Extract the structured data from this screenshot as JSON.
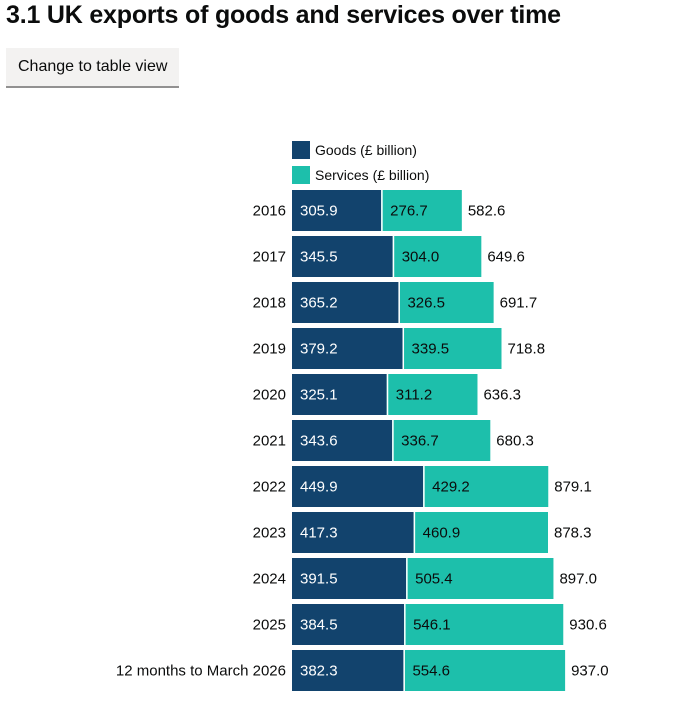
{
  "header": {
    "title": "3.1 UK exports of goods and services over time"
  },
  "controls": {
    "toggle_label": "Change to table view"
  },
  "colors": {
    "goods": "#12436d",
    "services": "#1dbfab",
    "divider": "#ffffff"
  },
  "chart_data": {
    "type": "bar",
    "orientation": "horizontal",
    "stacked": true,
    "title": "3.1 UK exports of goods and services over time",
    "categories": [
      "2016",
      "2017",
      "2018",
      "2019",
      "2020",
      "2021",
      "2022",
      "2023",
      "2024",
      "2025",
      "12 months to March 2026"
    ],
    "series": [
      {
        "name": "Goods (£ billion)",
        "values": [
          305.9,
          345.5,
          365.2,
          379.2,
          325.1,
          343.6,
          449.9,
          417.3,
          391.5,
          384.5,
          382.3
        ],
        "labels": [
          "305.9",
          "345.5",
          "365.2",
          "379.2",
          "325.1",
          "343.6",
          "449.9",
          "417.3",
          "391.5",
          "384.5",
          "382.3"
        ]
      },
      {
        "name": "Services (£ billion)",
        "values": [
          276.7,
          304.0,
          326.5,
          339.5,
          311.2,
          336.7,
          429.2,
          460.9,
          505.4,
          546.1,
          554.6
        ],
        "labels": [
          "276.7",
          "304.0",
          "326.5",
          "339.5",
          "311.2",
          "336.7",
          "429.2",
          "460.9",
          "505.4",
          "546.1",
          "554.6"
        ]
      }
    ],
    "totals": [
      582.6,
      649.6,
      691.7,
      718.8,
      636.3,
      680.3,
      879.1,
      878.3,
      897.0,
      930.6,
      937.0
    ],
    "total_labels": [
      "582.6",
      "649.6",
      "691.7",
      "718.8",
      "636.3",
      "680.3",
      "879.1",
      "878.3",
      "897.0",
      "930.6",
      "937.0"
    ],
    "xlabel": "",
    "ylabel": "",
    "xlim": [
      0,
      937.0
    ],
    "grid": false,
    "legend_position": "top"
  }
}
